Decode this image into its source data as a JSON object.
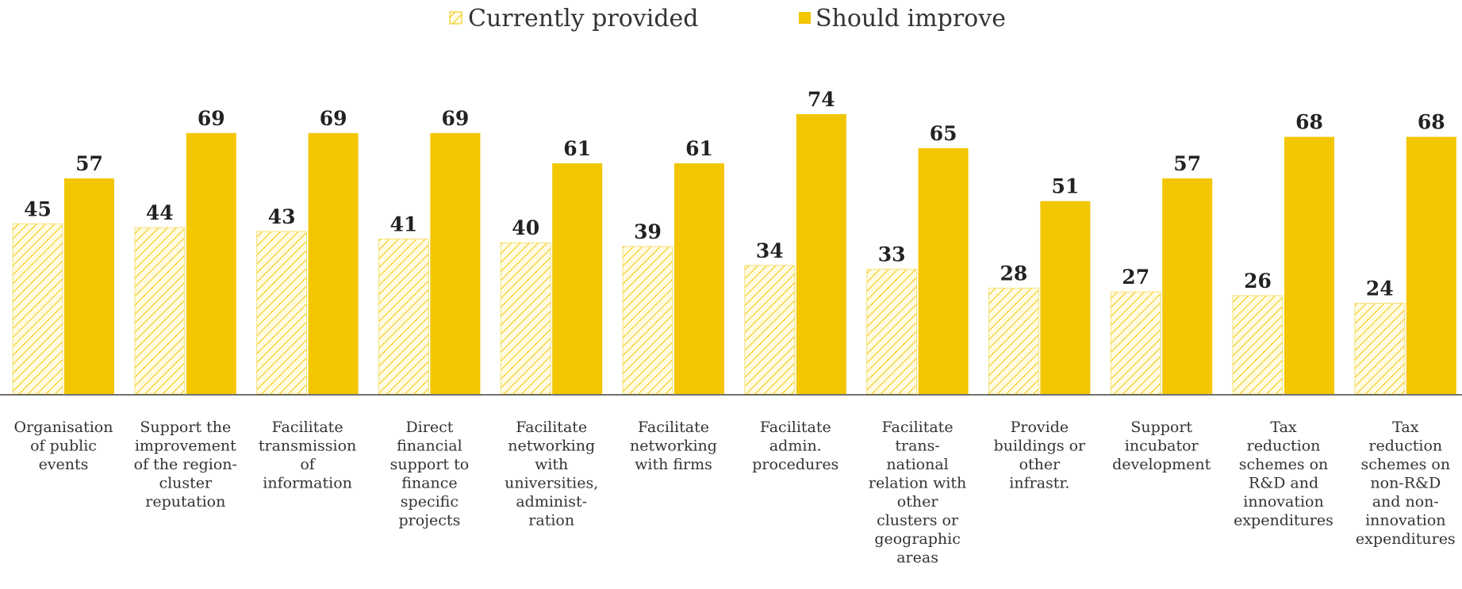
{
  "chart_data": {
    "type": "bar",
    "title": "",
    "xlabel": "",
    "ylabel": "",
    "ylim": [
      0,
      80
    ],
    "grid": false,
    "legend": "top",
    "categories": [
      [
        "Organisation",
        "of public",
        "events"
      ],
      [
        "Support the",
        "improvement",
        "of the region-",
        "cluster",
        "reputation"
      ],
      [
        "Facilitate",
        "transmission",
        "of",
        "information"
      ],
      [
        "Direct",
        "financial",
        "support to",
        "finance",
        "specific",
        "projects"
      ],
      [
        "Facilitate",
        "networking",
        "with",
        "universities,",
        "administ-",
        "ration"
      ],
      [
        "Facilitate",
        "networking",
        "with firms"
      ],
      [
        "Facilitate",
        "admin.",
        "procedures"
      ],
      [
        "Facilitate",
        "trans-",
        "national",
        "relation with",
        "other",
        "clusters or",
        "geographic",
        "areas"
      ],
      [
        "Provide",
        "buildings or",
        "other",
        "infrastr."
      ],
      [
        "Support",
        "incubator",
        "development"
      ],
      [
        "Tax",
        "reduction",
        "schemes on",
        "R&D and",
        "innovation",
        "expenditures"
      ],
      [
        "Tax",
        "reduction",
        "schemes on",
        "non-R&D",
        "and non-",
        "innovation",
        "expenditures"
      ]
    ],
    "series": [
      {
        "name": "Currently provided",
        "pattern": "hatched",
        "color": "#f2c600",
        "values": [
          45,
          44,
          43,
          41,
          40,
          39,
          34,
          33,
          28,
          27,
          26,
          24
        ]
      },
      {
        "name": "Should improve",
        "pattern": "solid",
        "color": "#f2c600",
        "values": [
          57,
          69,
          69,
          69,
          61,
          61,
          74,
          65,
          51,
          57,
          68,
          68
        ]
      }
    ]
  },
  "colors": {
    "accent": "#f2c600",
    "axis": "#444444"
  }
}
